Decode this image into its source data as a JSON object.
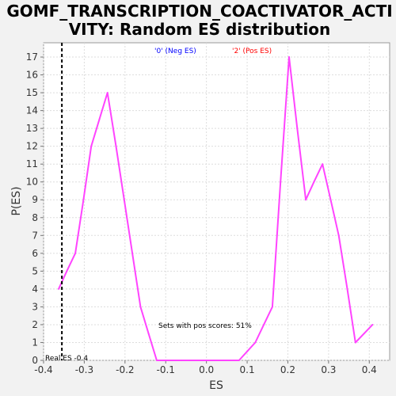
{
  "chart_data": {
    "type": "line",
    "title_lines": [
      "GOMF_TRANSCRIPTION_COACTIVATOR_ACTI",
      "VITY: Random ES distribution"
    ],
    "xlabel": "ES",
    "ylabel": "P(ES)",
    "xlim": [
      -0.4,
      0.45
    ],
    "ylim": [
      0,
      17.8
    ],
    "x_ticks": [
      "-0.4",
      "-0.3",
      "-0.2",
      "-0.1",
      "0.0",
      "0.1",
      "0.2",
      "0.3",
      "0.4"
    ],
    "x_tick_values": [
      -0.4,
      -0.3,
      -0.2,
      -0.1,
      0.0,
      0.1,
      0.2,
      0.3,
      0.4
    ],
    "y_ticks": [
      "0",
      "1",
      "2",
      "3",
      "4",
      "5",
      "6",
      "7",
      "8",
      "9",
      "10",
      "11",
      "12",
      "13",
      "14",
      "15",
      "16",
      "17"
    ],
    "y_tick_values": [
      0,
      1,
      2,
      3,
      4,
      5,
      6,
      7,
      8,
      9,
      10,
      11,
      12,
      13,
      14,
      15,
      16,
      17
    ],
    "grid": true,
    "legend": {
      "placement": "top",
      "entries": [
        {
          "label": "'0' (Neg ES)",
          "color": "#0000ff"
        },
        {
          "label": "'2' (Pos ES)",
          "color": "#ff0000"
        }
      ]
    },
    "series": [
      {
        "color": "#ff44ff",
        "x": [
          -0.363,
          -0.343,
          -0.322,
          -0.302,
          -0.283,
          -0.263,
          -0.243,
          -0.222,
          -0.202,
          -0.182,
          -0.162,
          -0.142,
          -0.122,
          -0.102,
          -0.082,
          -0.062,
          -0.042,
          -0.022,
          -0.002,
          0.018,
          0.039,
          0.059,
          0.08,
          0.1,
          0.12,
          0.141,
          0.162,
          0.182,
          0.203,
          0.223,
          0.244,
          0.264,
          0.285,
          0.305,
          0.325,
          0.346,
          0.366,
          0.387,
          0.408
        ],
        "y": [
          4,
          5,
          6,
          9,
          12,
          13.5,
          15,
          12,
          9,
          6,
          3,
          1.5,
          0,
          0,
          0,
          0,
          0,
          0,
          0,
          0,
          0,
          0,
          0,
          0.5,
          1,
          2,
          3,
          10,
          17,
          13,
          9,
          10,
          11,
          9,
          7,
          4,
          1,
          1.5,
          2
        ]
      }
    ],
    "real_es": {
      "x": -0.355,
      "label": "Real ES -0.4"
    },
    "annotation": "Sets with pos scores: 51%"
  }
}
